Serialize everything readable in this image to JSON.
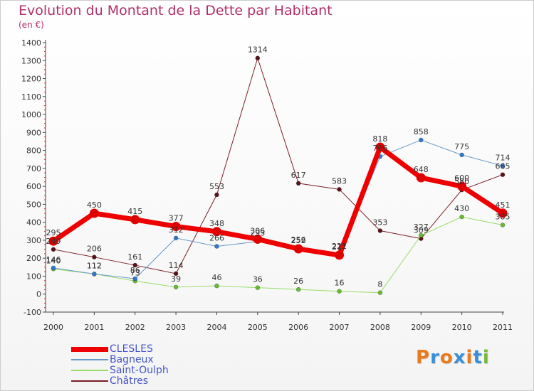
{
  "header": {
    "title": "Evolution du Montant de la Dette par Habitant",
    "unit": "(en €)"
  },
  "colors": {
    "title": "#b0306a",
    "legend_text": "#4455cc"
  },
  "logo": {
    "text": "Proxiti",
    "letters": [
      "P",
      "r",
      "o",
      "x",
      "i",
      "t",
      "i"
    ],
    "letter_colors": [
      "#e87b1e",
      "#3a8fd8",
      "#e87b1e",
      "#3a8fd8",
      "#e87b1e",
      "#3a8fd8",
      "#7ab83a"
    ]
  },
  "chart_data": {
    "type": "line",
    "title": "Evolution du Montant de la Dette par Habitant",
    "subtitle": "(en €)",
    "xlabel": "",
    "ylabel": "",
    "categories": [
      "2000",
      "2001",
      "2002",
      "2003",
      "2004",
      "2005",
      "2006",
      "2007",
      "2008",
      "2009",
      "2010",
      "2011"
    ],
    "ylim": [
      -100,
      1400
    ],
    "yticks": [
      -100,
      0,
      100,
      200,
      300,
      400,
      500,
      600,
      700,
      800,
      900,
      1000,
      1100,
      1200,
      1300,
      1400
    ],
    "grid": false,
    "legend_position": "bottom-left",
    "series": [
      {
        "name": "Châtres",
        "color": "#7a1f26",
        "dot": "#5a1218",
        "width": 1,
        "values": [
          249,
          206,
          161,
          114,
          553,
          1314,
          617,
          583,
          353,
          309,
          580,
          665
        ],
        "labels": [
          "249",
          "206",
          "161",
          "114",
          "553",
          "1314",
          "617",
          "583",
          "353",
          "309",
          "580",
          "665"
        ]
      },
      {
        "name": "Saint-Oulph",
        "color": "#99dd66",
        "dot": "#66bb33",
        "width": 1,
        "values": [
          140,
          112,
          73,
          39,
          46,
          36,
          26,
          16,
          8,
          327,
          430,
          385
        ],
        "labels": [
          "140",
          "112",
          "73",
          "39",
          "46",
          "36",
          "26",
          "16",
          "8",
          "327",
          "430",
          "385"
        ]
      },
      {
        "name": "Bagneux",
        "color": "#6699cc",
        "dot": "#3377cc",
        "width": 1,
        "values": [
          146,
          112,
          86,
          312,
          266,
          293,
          256,
          221,
          766,
          858,
          775,
          714
        ],
        "labels": [
          "146",
          "112",
          "86",
          "312",
          "266",
          "293",
          "256",
          "221",
          "766",
          "858",
          "775",
          "714"
        ]
      },
      {
        "name": "CLESLES",
        "color": "#ee0000",
        "dot": "#dd0000",
        "width": 7,
        "values": [
          295,
          450,
          415,
          377,
          348,
          306,
          252,
          217,
          818,
          648,
          600,
          451
        ],
        "labels": [
          "295",
          "450",
          "415",
          "377",
          "348",
          "306",
          "252",
          "217",
          "818",
          "648",
          "600",
          "451"
        ]
      }
    ],
    "legend": [
      "CLESLES",
      "Bagneux",
      "Saint-Oulph",
      "Châtres"
    ]
  }
}
